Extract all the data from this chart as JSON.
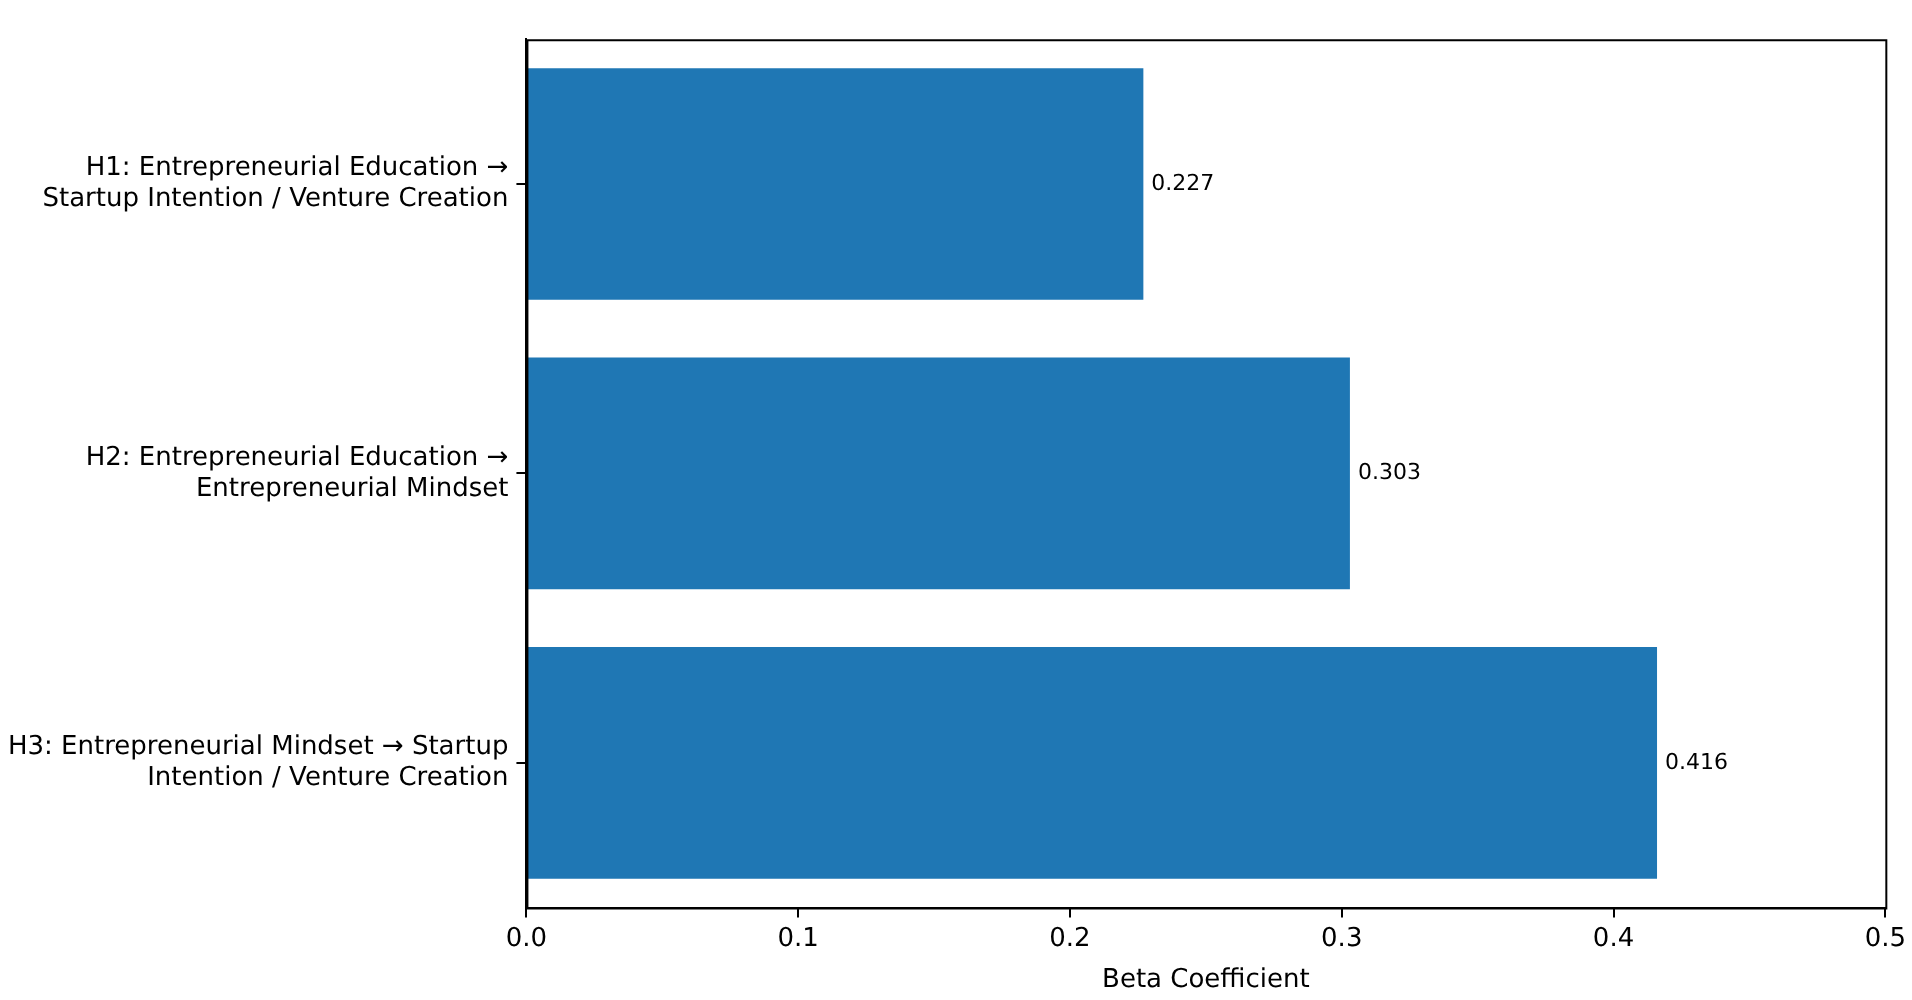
{
  "chart_data": {
    "type": "bar",
    "orientation": "horizontal",
    "xlabel": "Beta Coefficient",
    "categories": [
      "H1: Entrepreneurial Education → Startup Intention / Venture Creation",
      "H2: Entrepreneurial Education → Entrepreneurial Mindset",
      "H3: Entrepreneurial Mindset → Startup Intention / Venture Creation"
    ],
    "values": [
      0.227,
      0.303,
      0.416
    ],
    "color": "#1f77b4",
    "data_labels": true,
    "xlim": [
      0,
      0.5
    ],
    "xticks": [
      {
        "value": 0,
        "label": "0.0"
      },
      0.1,
      0.2,
      0.3,
      0.4,
      {
        "value": 0.5,
        "label": "0.5"
      }
    ],
    "grid": false,
    "legend": false
  }
}
